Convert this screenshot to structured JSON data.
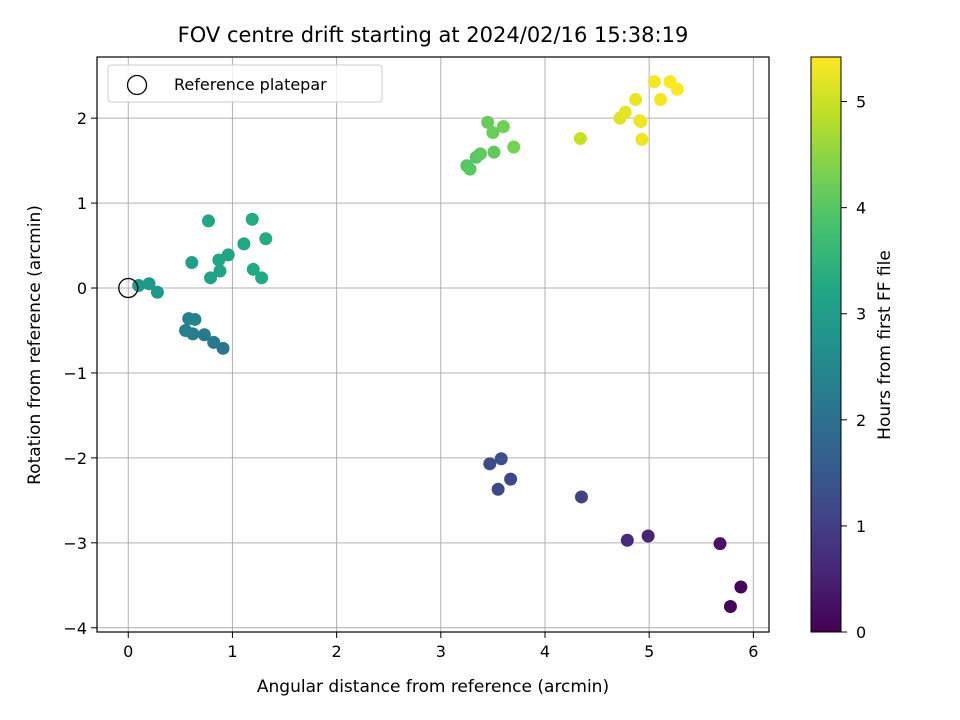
{
  "chart_data": {
    "type": "scatter",
    "title": "FOV centre drift starting at 2024/02/16 15:38:19",
    "xlabel": "Angular distance from reference (arcmin)",
    "ylabel": "Rotation from reference (arcmin)",
    "xlim": [
      -0.3,
      6.15
    ],
    "ylim": [
      -4.05,
      2.72
    ],
    "xticks": [
      0,
      1,
      2,
      3,
      4,
      5,
      6
    ],
    "yticks": [
      -4,
      -3,
      -2,
      -1,
      0,
      1,
      2
    ],
    "xtick_labels": [
      "0",
      "1",
      "2",
      "3",
      "4",
      "5",
      "6"
    ],
    "ytick_labels": [
      "−4",
      "−3",
      "−2",
      "−1",
      "0",
      "1",
      "2"
    ],
    "grid": true,
    "legend": {
      "placement": "upper-left",
      "entries": [
        "Reference platepar"
      ]
    },
    "reference_point": {
      "x": 0,
      "y": 0
    },
    "colorbar": {
      "label": "Hours from first FF file",
      "colormap": "viridis",
      "range": [
        0,
        5.42
      ],
      "ticks": [
        0,
        1,
        2,
        3,
        4,
        5
      ],
      "tick_labels": [
        "0",
        "1",
        "2",
        "3",
        "4",
        "5"
      ]
    },
    "points": [
      {
        "x": 5.78,
        "y": -3.75,
        "t": 0.05
      },
      {
        "x": 5.88,
        "y": -3.52,
        "t": 0.1
      },
      {
        "x": 5.68,
        "y": -3.01,
        "t": 0.3
      },
      {
        "x": 4.99,
        "y": -2.92,
        "t": 0.55
      },
      {
        "x": 4.79,
        "y": -2.97,
        "t": 0.65
      },
      {
        "x": 4.35,
        "y": -2.46,
        "t": 1.05
      },
      {
        "x": 3.67,
        "y": -2.25,
        "t": 1.15
      },
      {
        "x": 3.55,
        "y": -2.37,
        "t": 1.2
      },
      {
        "x": 3.47,
        "y": -2.07,
        "t": 1.25
      },
      {
        "x": 3.58,
        "y": -2.01,
        "t": 1.3
      },
      {
        "x": 0.91,
        "y": -0.71,
        "t": 2.1
      },
      {
        "x": 0.82,
        "y": -0.64,
        "t": 2.15
      },
      {
        "x": 0.73,
        "y": -0.55,
        "t": 2.2
      },
      {
        "x": 0.62,
        "y": -0.54,
        "t": 2.25
      },
      {
        "x": 0.55,
        "y": -0.5,
        "t": 2.3
      },
      {
        "x": 0.58,
        "y": -0.36,
        "t": 2.35
      },
      {
        "x": 0.64,
        "y": -0.37,
        "t": 2.4
      },
      {
        "x": 0.28,
        "y": -0.05,
        "t": 2.85
      },
      {
        "x": 0.2,
        "y": 0.05,
        "t": 2.9
      },
      {
        "x": 0.1,
        "y": 0.03,
        "t": 2.9
      },
      {
        "x": 0.61,
        "y": 0.3,
        "t": 3.05
      },
      {
        "x": 0.79,
        "y": 0.12,
        "t": 3.1
      },
      {
        "x": 0.88,
        "y": 0.2,
        "t": 3.1
      },
      {
        "x": 0.87,
        "y": 0.33,
        "t": 3.15
      },
      {
        "x": 0.96,
        "y": 0.39,
        "t": 3.15
      },
      {
        "x": 0.77,
        "y": 0.79,
        "t": 3.2
      },
      {
        "x": 1.11,
        "y": 0.52,
        "t": 3.2
      },
      {
        "x": 1.2,
        "y": 0.22,
        "t": 3.25
      },
      {
        "x": 1.28,
        "y": 0.12,
        "t": 3.25
      },
      {
        "x": 1.19,
        "y": 0.81,
        "t": 3.3
      },
      {
        "x": 1.32,
        "y": 0.58,
        "t": 3.3
      },
      {
        "x": 3.25,
        "y": 1.44,
        "t": 3.95
      },
      {
        "x": 3.28,
        "y": 1.4,
        "t": 4.0
      },
      {
        "x": 3.34,
        "y": 1.54,
        "t": 4.0
      },
      {
        "x": 3.38,
        "y": 1.58,
        "t": 4.05
      },
      {
        "x": 3.51,
        "y": 1.6,
        "t": 4.1
      },
      {
        "x": 3.45,
        "y": 1.95,
        "t": 4.15
      },
      {
        "x": 3.5,
        "y": 1.83,
        "t": 4.2
      },
      {
        "x": 3.6,
        "y": 1.9,
        "t": 4.25
      },
      {
        "x": 3.7,
        "y": 1.66,
        "t": 4.3
      },
      {
        "x": 4.34,
        "y": 1.76,
        "t": 4.95
      },
      {
        "x": 4.72,
        "y": 2.0,
        "t": 5.15
      },
      {
        "x": 4.77,
        "y": 2.07,
        "t": 5.2
      },
      {
        "x": 4.87,
        "y": 2.22,
        "t": 5.25
      },
      {
        "x": 4.91,
        "y": 1.97,
        "t": 5.25
      },
      {
        "x": 4.93,
        "y": 1.75,
        "t": 5.3
      },
      {
        "x": 4.92,
        "y": 1.96,
        "t": 5.3
      },
      {
        "x": 5.05,
        "y": 2.43,
        "t": 5.35
      },
      {
        "x": 5.11,
        "y": 2.22,
        "t": 5.35
      },
      {
        "x": 5.2,
        "y": 2.43,
        "t": 5.4
      },
      {
        "x": 5.27,
        "y": 2.34,
        "t": 5.4
      }
    ]
  }
}
